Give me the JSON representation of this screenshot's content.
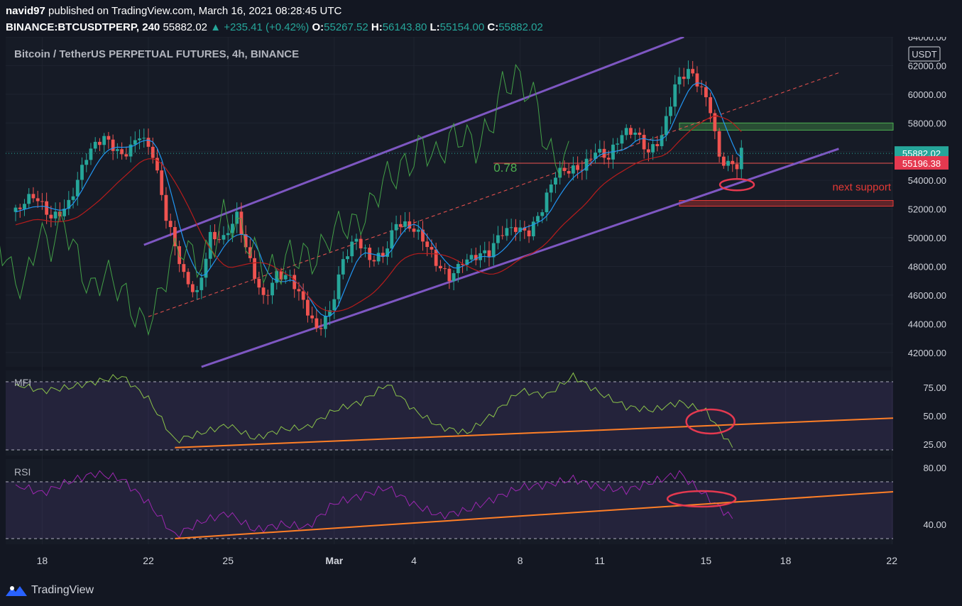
{
  "header": {
    "author": "navid97",
    "published_text": "published on TradingView.com, March 16, 2021 08:28:45 UTC",
    "symbol": "BINANCE:BTCUSDTPERP, 240",
    "last": "55882.02",
    "change": "▲ +235.41 (+0.42%)",
    "o_label": "O:",
    "o": "55267.52",
    "h_label": "H:",
    "h": "56143.80",
    "l_label": "L:",
    "l": "55154.00",
    "c_label": "C:",
    "c": "55882.02"
  },
  "footer": {
    "brand": "TradingView"
  },
  "colors": {
    "bg": "#131722",
    "up": "#26a69a",
    "down": "#ef5350",
    "channel": "#7e57c2",
    "tenkan": "#2196f3",
    "kijun": "#b71c1c",
    "chikou": "#43a047",
    "osc_line": "#8bc34a",
    "rsi_line": "#9c27b0",
    "trend": "#ff7f27",
    "marker": "#e53950"
  },
  "chart_data": [
    {
      "type": "candlestick",
      "title": "Bitcoin / TetherUS PERPETUAL FUTURES, 4h, BINANCE",
      "currency": "USDT",
      "x_ticks": [
        "18",
        "22",
        "25",
        "Mar",
        "4",
        "8",
        "11",
        "15",
        "18",
        "22"
      ],
      "x_range": [
        "2021-02-17",
        "2021-03-22"
      ],
      "ylim": [
        41000,
        64000
      ],
      "y_ticks": [
        42000,
        44000,
        46000,
        48000,
        50000,
        52000,
        54000,
        56000,
        58000,
        60000,
        62000,
        64000
      ],
      "y_tick_labels": [
        "42000.00",
        "44000.00",
        "46000.00",
        "48000.00",
        "50000.00",
        "52000.00",
        "54000.00",
        "56000.00",
        "58000.00",
        "60000.00",
        "62000.00",
        "64000.00"
      ],
      "last_price": 55882.02,
      "last_price_label": "55882.02",
      "marked_level": 55196.38,
      "marked_level_label": "55196.38",
      "annotations": [
        {
          "text": "0.78",
          "color": "#4caf50"
        },
        {
          "text": "next support",
          "color": "#e53935"
        }
      ],
      "zones": [
        {
          "kind": "resistance",
          "from": 57500,
          "to": 58000,
          "color": "#4caf50"
        },
        {
          "kind": "support",
          "from": 52200,
          "to": 52600,
          "color": "#e53935"
        }
      ],
      "close_path": [
        [
          "2021-02-17T00:00",
          51800
        ],
        [
          "2021-02-17T16:00",
          52500
        ],
        [
          "2021-02-18T08:00",
          51500
        ],
        [
          "2021-02-19T00:00",
          52800
        ],
        [
          "2021-02-19T16:00",
          55500
        ],
        [
          "2021-02-20T08:00",
          56600
        ],
        [
          "2021-02-21T00:00",
          56000
        ],
        [
          "2021-02-21T16:00",
          57500
        ],
        [
          "2021-02-22T04:00",
          55600
        ],
        [
          "2021-02-22T16:00",
          51000
        ],
        [
          "2021-02-23T08:00",
          47500
        ],
        [
          "2021-02-23T20:00",
          46500
        ],
        [
          "2021-02-24T08:00",
          50200
        ],
        [
          "2021-02-24T20:00",
          49500
        ],
        [
          "2021-02-25T08:00",
          51200
        ],
        [
          "2021-02-25T20:00",
          48500
        ],
        [
          "2021-02-26T08:00",
          46200
        ],
        [
          "2021-02-26T20:00",
          47500
        ],
        [
          "2021-02-27T08:00",
          46800
        ],
        [
          "2021-02-27T20:00",
          45200
        ],
        [
          "2021-02-28T08:00",
          43800
        ],
        [
          "2021-02-28T20:00",
          45300
        ],
        [
          "2021-03-01T08:00",
          48500
        ],
        [
          "2021-03-01T20:00",
          49500
        ],
        [
          "2021-03-02T08:00",
          48200
        ],
        [
          "2021-03-02T20:00",
          49000
        ],
        [
          "2021-03-03T08:00",
          51500
        ],
        [
          "2021-03-03T20:00",
          50800
        ],
        [
          "2021-03-04T08:00",
          49500
        ],
        [
          "2021-03-04T20:00",
          48000
        ],
        [
          "2021-03-05T08:00",
          47500
        ],
        [
          "2021-03-05T20:00",
          48800
        ],
        [
          "2021-03-06T08:00",
          48700
        ],
        [
          "2021-03-06T20:00",
          48500
        ],
        [
          "2021-03-07T08:00",
          50200
        ],
        [
          "2021-03-07T20:00",
          51000
        ],
        [
          "2021-03-08T08:00",
          50800
        ],
        [
          "2021-03-08T20:00",
          52000
        ],
        [
          "2021-03-09T08:00",
          54000
        ],
        [
          "2021-03-09T20:00",
          54500
        ],
        [
          "2021-03-10T08:00",
          55200
        ],
        [
          "2021-03-10T20:00",
          56500
        ],
        [
          "2021-03-11T08:00",
          55500
        ],
        [
          "2021-03-11T20:00",
          56800
        ],
        [
          "2021-03-12T08:00",
          57200
        ],
        [
          "2021-03-12T20:00",
          56300
        ],
        [
          "2021-03-13T08:00",
          57500
        ],
        [
          "2021-03-13T20:00",
          60500
        ],
        [
          "2021-03-14T08:00",
          61200
        ],
        [
          "2021-03-14T20:00",
          60200
        ],
        [
          "2021-03-15T04:00",
          59200
        ],
        [
          "2021-03-15T12:00",
          56000
        ],
        [
          "2021-03-15T20:00",
          55500
        ],
        [
          "2021-03-16T04:00",
          55100
        ],
        [
          "2021-03-16T08:00",
          55882
        ]
      ],
      "channel": {
        "lower": [
          [
            "2021-02-24T00:00",
            41000
          ],
          [
            "2021-03-20T00:00",
            56200
          ]
        ],
        "upper": [
          [
            "2021-02-21T20:00",
            49500
          ],
          [
            "2021-03-14T04:00",
            64000
          ]
        ]
      }
    },
    {
      "type": "line",
      "name": "MFI",
      "x_range": [
        "2021-02-17",
        "2021-03-22"
      ],
      "ylim": [
        15,
        90
      ],
      "y_ticks": [
        25,
        50,
        75
      ],
      "y_tick_labels": [
        "25.00",
        "50.00",
        "75.00"
      ],
      "bands": [
        20,
        80
      ],
      "values": [
        [
          "2021-02-17",
          78
        ],
        [
          "2021-02-18",
          72
        ],
        [
          "2021-02-19",
          75
        ],
        [
          "2021-02-20",
          80
        ],
        [
          "2021-02-21",
          85
        ],
        [
          "2021-02-22",
          65
        ],
        [
          "2021-02-23",
          28
        ],
        [
          "2021-02-24",
          35
        ],
        [
          "2021-02-25",
          42
        ],
        [
          "2021-02-26",
          30
        ],
        [
          "2021-02-27",
          38
        ],
        [
          "2021-02-28",
          40
        ],
        [
          "2021-03-01",
          55
        ],
        [
          "2021-03-02",
          62
        ],
        [
          "2021-03-03",
          78
        ],
        [
          "2021-03-04",
          55
        ],
        [
          "2021-03-05",
          40
        ],
        [
          "2021-03-06",
          35
        ],
        [
          "2021-03-07",
          52
        ],
        [
          "2021-03-08",
          72
        ],
        [
          "2021-03-09",
          68
        ],
        [
          "2021-03-10",
          85
        ],
        [
          "2021-03-11",
          70
        ],
        [
          "2021-03-12",
          58
        ],
        [
          "2021-03-13",
          55
        ],
        [
          "2021-03-14",
          62
        ],
        [
          "2021-03-15",
          54
        ],
        [
          "2021-03-16",
          22
        ]
      ]
    },
    {
      "type": "line",
      "name": "RSI",
      "x_range": [
        "2021-02-17",
        "2021-03-22"
      ],
      "ylim": [
        26,
        86
      ],
      "y_ticks": [
        40,
        80
      ],
      "y_tick_labels": [
        "40.00",
        "80.00"
      ],
      "bands": [
        30,
        70
      ],
      "values": [
        [
          "2021-02-17",
          68
        ],
        [
          "2021-02-18",
          62
        ],
        [
          "2021-02-19",
          70
        ],
        [
          "2021-02-20",
          76
        ],
        [
          "2021-02-21",
          72
        ],
        [
          "2021-02-22",
          55
        ],
        [
          "2021-02-23",
          32
        ],
        [
          "2021-02-24",
          42
        ],
        [
          "2021-02-25",
          48
        ],
        [
          "2021-02-26",
          36
        ],
        [
          "2021-02-27",
          40
        ],
        [
          "2021-02-28",
          38
        ],
        [
          "2021-03-01",
          55
        ],
        [
          "2021-03-02",
          60
        ],
        [
          "2021-03-03",
          66
        ],
        [
          "2021-03-04",
          54
        ],
        [
          "2021-03-05",
          46
        ],
        [
          "2021-03-06",
          50
        ],
        [
          "2021-03-07",
          58
        ],
        [
          "2021-03-08",
          66
        ],
        [
          "2021-03-09",
          68
        ],
        [
          "2021-03-10",
          72
        ],
        [
          "2021-03-11",
          66
        ],
        [
          "2021-03-12",
          64
        ],
        [
          "2021-03-13",
          70
        ],
        [
          "2021-03-14",
          76
        ],
        [
          "2021-03-15",
          60
        ],
        [
          "2021-03-16",
          44
        ]
      ]
    }
  ]
}
